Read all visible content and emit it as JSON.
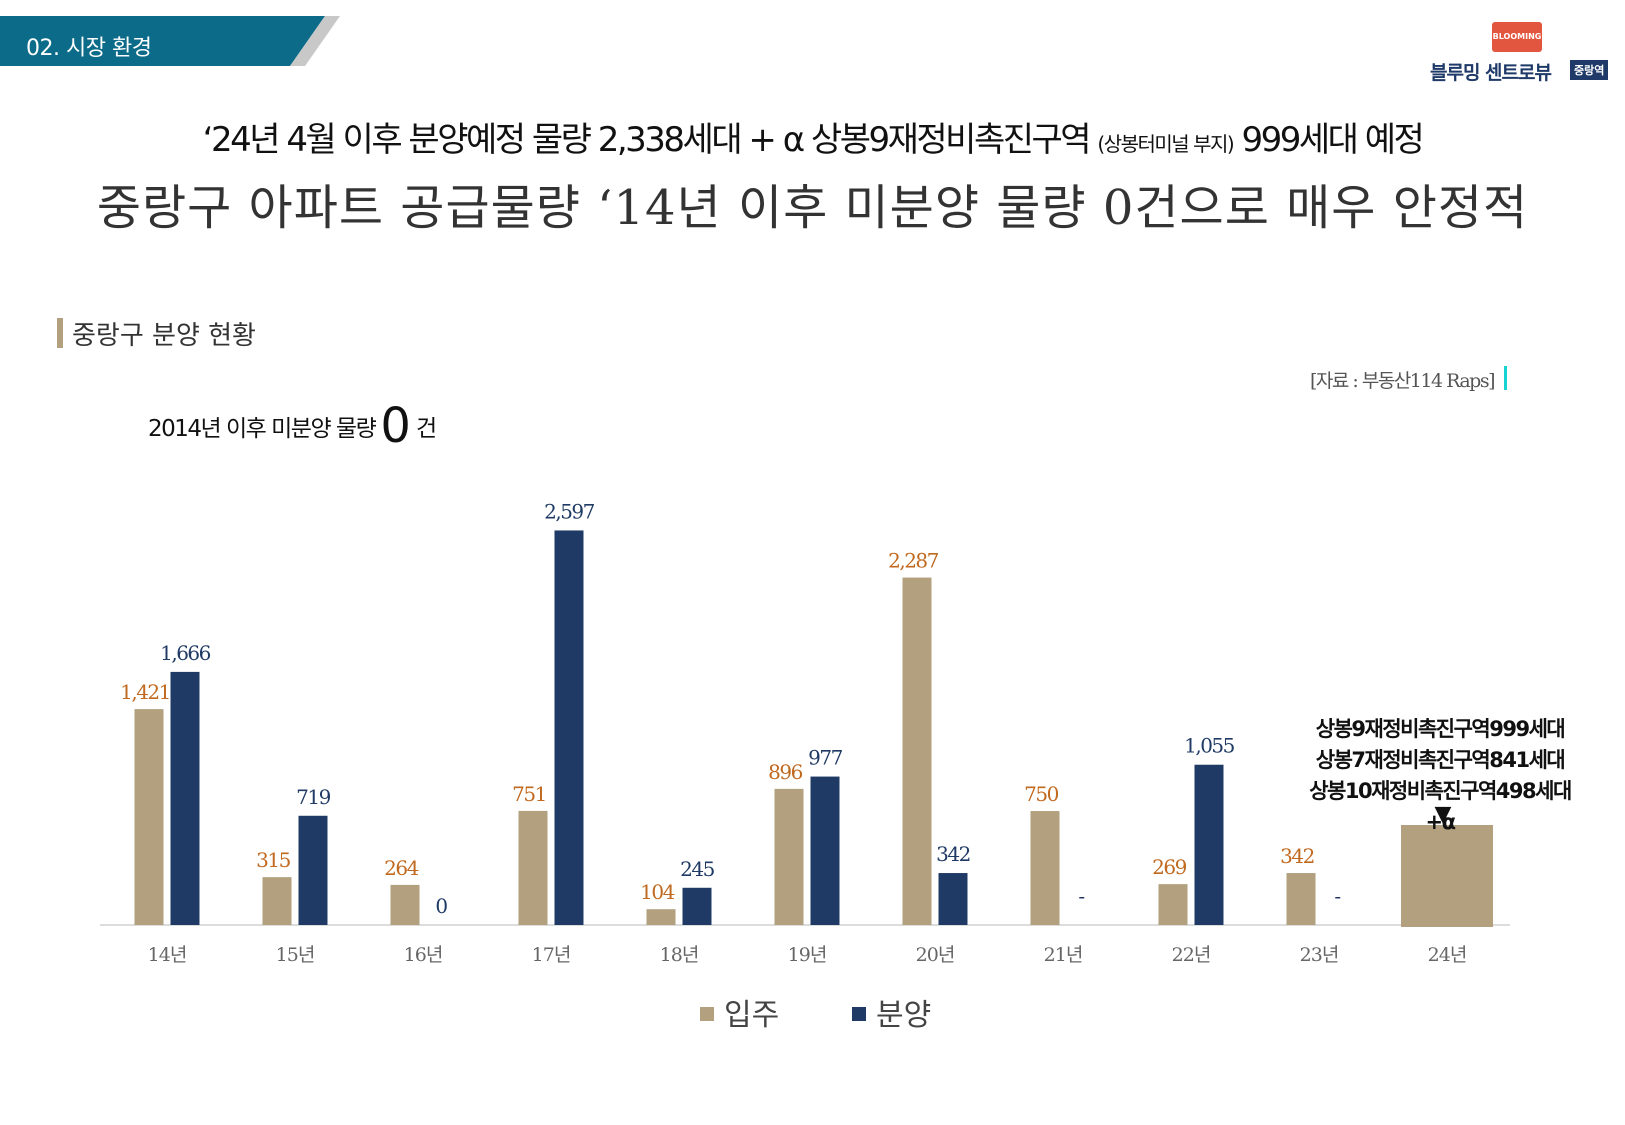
{
  "section": {
    "label": "02. 시장 환경"
  },
  "logo": {
    "badge": "BLOOMING",
    "name": "블루밍 센트로뷰",
    "sub": "중랑역"
  },
  "headline": {
    "line1_main": "‘24년 4월 이후 분양예정 물량 2,338세대 + α  상봉9재정비촉진구역",
    "line1_small": "(상봉터미널 부지)",
    "line1_end": "999세대 예정",
    "line2": "중랑구 아파트 공급물량 ‘14년 이후 미분양 물량 0건으로 매우 안정적"
  },
  "chart_title": "중랑구 분양 현황",
  "source": "[자료 : 부동산114 Raps]",
  "note": {
    "text": "2014년 이후 미분양 물량",
    "zero": "0",
    "unit": "건"
  },
  "annotation": {
    "lines": [
      "상봉9재정비촉진구역999세대",
      "상봉7재정비촉진구역841세대",
      "상봉10재정비촉진구역498세대+α"
    ],
    "arrow": "▼"
  },
  "colors": {
    "occupancy": "#b2a07e",
    "sale": "#1f3a64",
    "occupancy_label": "#c0691f",
    "sale_label": "#1f3a64",
    "header_tab": "#0b6b89"
  },
  "chart_data": {
    "type": "bar",
    "categories": [
      "14년",
      "15년",
      "16년",
      "17년",
      "18년",
      "19년",
      "20년",
      "21년",
      "22년",
      "23년",
      "24년"
    ],
    "series": [
      {
        "name": "입주",
        "values": [
          1421,
          315,
          264,
          751,
          104,
          896,
          2287,
          750,
          269,
          342,
          null
        ],
        "labels": [
          "1,421",
          "315",
          "264",
          "751",
          "104",
          "896",
          "2,287",
          "750",
          "269",
          "342",
          ""
        ]
      },
      {
        "name": "분양",
        "values": [
          1666,
          719,
          0,
          2597,
          245,
          977,
          342,
          null,
          1055,
          null,
          null
        ],
        "labels": [
          "1,666",
          "719",
          "0",
          "2,597",
          "245",
          "977",
          "342",
          "-",
          "1,055",
          "-",
          ""
        ]
      }
    ],
    "ylim": [
      0,
      2600
    ],
    "grid": false,
    "legend": "bottom-center"
  }
}
